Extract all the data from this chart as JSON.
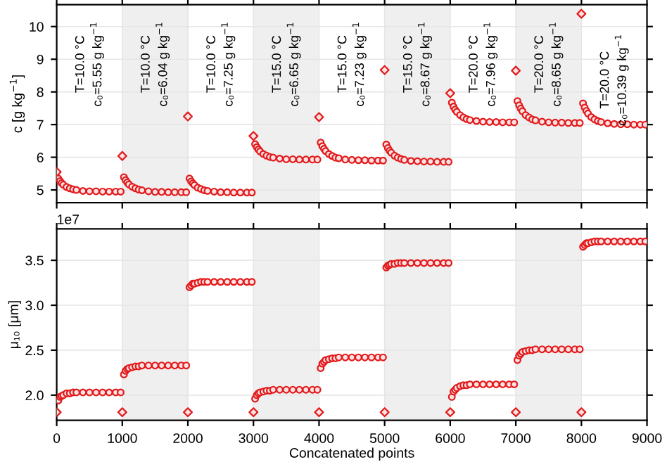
{
  "chart_data": [
    {
      "type": "scatter",
      "ylabel": "c [g kg$^{−1}$]",
      "xlim": [
        0,
        9000
      ],
      "xticks": [
        0,
        1000,
        2000,
        3000,
        4000,
        5000,
        6000,
        7000,
        8000,
        9000
      ],
      "ylim": [
        4.61,
        10.67
      ],
      "yticks": [
        5,
        6,
        7,
        8,
        9,
        10
      ],
      "tick_labels": "y",
      "grid": true,
      "bands": [
        {
          "axis": "x",
          "from": 1000,
          "to": 2000,
          "color": "#efefef"
        },
        {
          "axis": "x",
          "from": 3000,
          "to": 4000,
          "color": "#efefef"
        },
        {
          "axis": "x",
          "from": 5000,
          "to": 6000,
          "color": "#efefef"
        },
        {
          "axis": "x",
          "from": 7000,
          "to": 8000,
          "color": "#efefef"
        }
      ],
      "annotations": [
        "T=10.0 °C\nc₀=5.55 g kg$^{−1}$",
        "T=10.0 °C\nc₀=6.04 g kg$^{−1}$",
        "T=10.0 °C\nc₀=7.25 g kg$^{−1}$",
        "T=15.0 °C\nc₀=6.65 g kg$^{−1}$",
        "T=15.0 °C\nc₀=7.23 g kg$^{−1}$",
        "T=15.0 °C\nc₀=8.67 g kg$^{−1}$",
        "T=20.0 °C\nc₀=7.96 g kg$^{−1}$",
        "T=20.0 °C\nc₀=8.65 g kg$^{−1}$",
        "T=20.0 °C\nc₀=10.39 g kg$^{−1}$"
      ],
      "series": [
        {
          "color": "#e31a1c",
          "marker": "diamond",
          "x": [
            0,
            1000,
            2000,
            3000,
            4000,
            5000,
            6000,
            7000,
            8000
          ],
          "values": [
            5.55,
            6.04,
            7.25,
            6.65,
            7.23,
            8.67,
            7.96,
            8.65,
            10.39
          ]
        },
        {
          "color": "#e31a1c",
          "marker": "circle",
          "x": [
            25,
            50,
            75,
            100,
            150,
            200,
            250,
            300,
            400,
            500,
            600,
            700,
            800,
            900,
            975,
            1025,
            1050,
            1075,
            1100,
            1150,
            1200,
            1250,
            1300,
            1400,
            1500,
            1600,
            1700,
            1800,
            1900,
            1975,
            2025,
            2050,
            2075,
            2100,
            2150,
            2200,
            2250,
            2300,
            2400,
            2500,
            2600,
            2700,
            2800,
            2900,
            2975,
            3025,
            3050,
            3075,
            3100,
            3150,
            3200,
            3250,
            3300,
            3400,
            3500,
            3600,
            3700,
            3800,
            3900,
            3975,
            4025,
            4050,
            4075,
            4100,
            4150,
            4200,
            4250,
            4300,
            4400,
            4500,
            4600,
            4700,
            4800,
            4900,
            4975,
            5025,
            5050,
            5075,
            5100,
            5150,
            5200,
            5250,
            5300,
            5400,
            5500,
            5600,
            5700,
            5800,
            5900,
            5975,
            6025,
            6050,
            6075,
            6100,
            6150,
            6200,
            6250,
            6300,
            6400,
            6500,
            6600,
            6700,
            6800,
            6900,
            6975,
            7025,
            7050,
            7075,
            7100,
            7150,
            7200,
            7250,
            7300,
            7400,
            7500,
            7600,
            7700,
            7800,
            7900,
            7975,
            8025,
            8050,
            8075,
            8100,
            8150,
            8200,
            8250,
            8300,
            8400,
            8500,
            8600,
            8700,
            8800,
            8900,
            8975
          ],
          "values": [
            5.35,
            5.27,
            5.21,
            5.16,
            5.09,
            5.05,
            5.02,
            5.0,
            4.97,
            4.96,
            4.96,
            4.95,
            4.95,
            4.95,
            4.95,
            5.39,
            5.3,
            5.23,
            5.17,
            5.1,
            5.05,
            5.01,
            4.99,
            4.96,
            4.94,
            4.94,
            4.93,
            4.93,
            4.93,
            4.93,
            5.35,
            5.26,
            5.2,
            5.15,
            5.07,
            5.03,
            4.99,
            4.97,
            4.95,
            4.93,
            4.93,
            4.92,
            4.92,
            4.92,
            4.92,
            6.4,
            6.31,
            6.24,
            6.18,
            6.1,
            6.05,
            6.01,
            5.99,
            5.96,
            5.94,
            5.94,
            5.93,
            5.93,
            5.93,
            5.93,
            6.45,
            6.34,
            6.26,
            6.19,
            6.1,
            6.04,
            5.99,
            5.97,
            5.93,
            5.92,
            5.91,
            5.91,
            5.9,
            5.9,
            5.9,
            6.39,
            6.28,
            6.2,
            6.14,
            6.05,
            5.99,
            5.95,
            5.92,
            5.89,
            5.88,
            5.87,
            5.87,
            5.86,
            5.86,
            5.86,
            7.67,
            7.55,
            7.46,
            7.39,
            7.29,
            7.22,
            7.17,
            7.14,
            7.11,
            7.09,
            7.08,
            7.08,
            7.07,
            7.07,
            7.07,
            7.72,
            7.59,
            7.49,
            7.41,
            7.29,
            7.22,
            7.16,
            7.13,
            7.09,
            7.07,
            7.06,
            7.06,
            7.05,
            7.05,
            7.05,
            7.65,
            7.52,
            7.42,
            7.34,
            7.23,
            7.16,
            7.11,
            7.08,
            7.04,
            7.02,
            7.01,
            7.01,
            7.0,
            7.0,
            7.0
          ]
        }
      ]
    },
    {
      "type": "scatter",
      "ylabel": "μ₁₀ [μm]",
      "xlabel": "Concatenated points",
      "xlim": [
        0,
        9000
      ],
      "xticks": [
        0,
        1000,
        2000,
        3000,
        4000,
        5000,
        6000,
        7000,
        8000,
        9000
      ],
      "ylim": [
        1.72,
        3.85
      ],
      "yticks": [
        {
          "value": 2.0,
          "label": "2.0"
        },
        2.5,
        {
          "value": 3.0,
          "label": "3.0"
        },
        3.5
      ],
      "grid": true,
      "bands": [
        {
          "axis": "x",
          "from": 1000,
          "to": 2000,
          "color": "#efefef"
        },
        {
          "axis": "x",
          "from": 3000,
          "to": 4000,
          "color": "#efefef"
        },
        {
          "axis": "x",
          "from": 5000,
          "to": 6000,
          "color": "#efefef"
        },
        {
          "axis": "x",
          "from": 7000,
          "to": 8000,
          "color": "#efefef"
        }
      ],
      "annotations": [
        "1e7"
      ],
      "series": [
        {
          "color": "#e31a1c",
          "marker": "diamond",
          "x": [
            0,
            1000,
            2000,
            3000,
            4000,
            5000,
            6000,
            7000,
            8000
          ],
          "values": [
            1.81,
            1.81,
            1.81,
            1.81,
            1.81,
            1.81,
            1.81,
            1.81,
            1.81
          ]
        },
        {
          "color": "#e31a1c",
          "marker": "circle",
          "x": [
            25,
            50,
            75,
            100,
            150,
            200,
            250,
            300,
            400,
            500,
            600,
            700,
            800,
            900,
            975,
            1025,
            1050,
            1075,
            1100,
            1150,
            1200,
            1250,
            1300,
            1400,
            1500,
            1600,
            1700,
            1800,
            1900,
            1975,
            2025,
            2050,
            2075,
            2100,
            2150,
            2200,
            2250,
            2300,
            2400,
            2500,
            2600,
            2700,
            2800,
            2900,
            2975,
            3025,
            3050,
            3075,
            3100,
            3150,
            3200,
            3250,
            3300,
            3400,
            3500,
            3600,
            3700,
            3800,
            3900,
            3975,
            4025,
            4050,
            4075,
            4100,
            4150,
            4200,
            4250,
            4300,
            4400,
            4500,
            4600,
            4700,
            4800,
            4900,
            4975,
            5025,
            5050,
            5075,
            5100,
            5150,
            5200,
            5250,
            5300,
            5400,
            5500,
            5600,
            5700,
            5800,
            5900,
            5975,
            6025,
            6050,
            6075,
            6100,
            6150,
            6200,
            6250,
            6300,
            6400,
            6500,
            6600,
            6700,
            6800,
            6900,
            6975,
            7025,
            7050,
            7075,
            7100,
            7150,
            7200,
            7250,
            7300,
            7400,
            7500,
            7600,
            7700,
            7800,
            7900,
            7975,
            8025,
            8050,
            8075,
            8100,
            8150,
            8200,
            8250,
            8300,
            8400,
            8500,
            8600,
            8700,
            8800,
            8900,
            8975
          ],
          "values": [
            1.94,
            1.98,
            1.99,
            2.0,
            2.02,
            2.02,
            2.03,
            2.03,
            2.03,
            2.03,
            2.03,
            2.03,
            2.03,
            2.03,
            2.03,
            2.23,
            2.27,
            2.29,
            2.3,
            2.31,
            2.32,
            2.32,
            2.33,
            2.33,
            2.33,
            2.33,
            2.33,
            2.33,
            2.33,
            2.33,
            3.2,
            3.22,
            3.24,
            3.24,
            3.25,
            3.26,
            3.26,
            3.26,
            3.26,
            3.26,
            3.26,
            3.26,
            3.26,
            3.26,
            3.26,
            1.96,
            2.0,
            2.02,
            2.03,
            2.04,
            2.05,
            2.05,
            2.06,
            2.06,
            2.06,
            2.06,
            2.06,
            2.06,
            2.06,
            2.06,
            2.3,
            2.35,
            2.37,
            2.39,
            2.4,
            2.41,
            2.41,
            2.42,
            2.42,
            2.42,
            2.42,
            2.42,
            2.42,
            2.42,
            2.42,
            3.42,
            3.44,
            3.45,
            3.46,
            3.46,
            3.47,
            3.47,
            3.47,
            3.47,
            3.47,
            3.47,
            3.47,
            3.47,
            3.47,
            3.47,
            1.98,
            2.04,
            2.06,
            2.08,
            2.1,
            2.11,
            2.11,
            2.12,
            2.12,
            2.12,
            2.12,
            2.12,
            2.12,
            2.12,
            2.12,
            2.39,
            2.44,
            2.46,
            2.48,
            2.49,
            2.5,
            2.5,
            2.51,
            2.51,
            2.51,
            2.51,
            2.51,
            2.51,
            2.51,
            2.51,
            3.65,
            3.67,
            3.69,
            3.69,
            3.7,
            3.71,
            3.71,
            3.71,
            3.71,
            3.71,
            3.71,
            3.71,
            3.71,
            3.71,
            3.71
          ]
        }
      ]
    }
  ]
}
